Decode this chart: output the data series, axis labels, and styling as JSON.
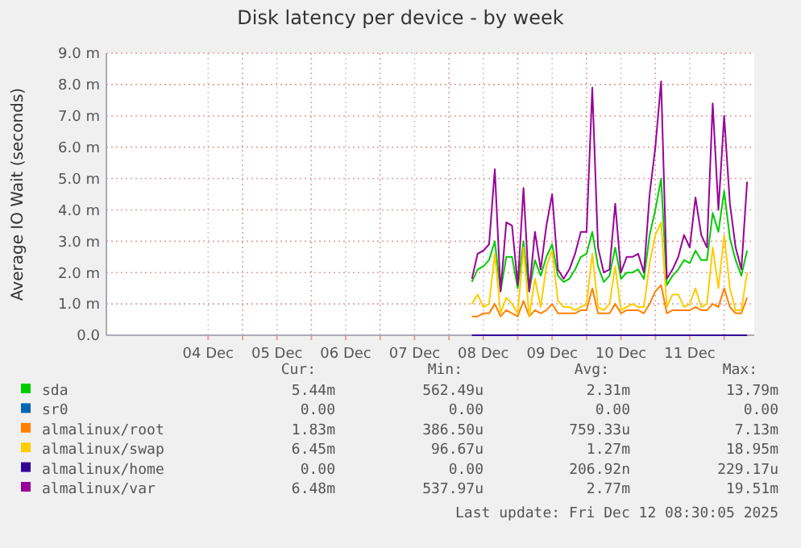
{
  "chart_data": {
    "type": "line",
    "title": "Disk latency per device - by week",
    "ylabel": "Average IO Wait (seconds)",
    "x": [
      "2025-12-08T08:00",
      "2025-12-08T10:00",
      "2025-12-08T12:00",
      "2025-12-08T14:00",
      "2025-12-08T16:00",
      "2025-12-08T18:00",
      "2025-12-08T20:00",
      "2025-12-08T22:00",
      "2025-12-09T00:00",
      "2025-12-09T02:00",
      "2025-12-09T04:00",
      "2025-12-09T06:00",
      "2025-12-09T08:00",
      "2025-12-09T10:00",
      "2025-12-09T12:00",
      "2025-12-09T14:00",
      "2025-12-09T16:00",
      "2025-12-09T18:00",
      "2025-12-09T20:00",
      "2025-12-09T22:00",
      "2025-12-10T00:00",
      "2025-12-10T02:00",
      "2025-12-10T04:00",
      "2025-12-10T06:00",
      "2025-12-10T08:00",
      "2025-12-10T10:00",
      "2025-12-10T12:00",
      "2025-12-10T14:00",
      "2025-12-10T16:00",
      "2025-12-10T18:00",
      "2025-12-10T20:00",
      "2025-12-10T22:00",
      "2025-12-11T00:00",
      "2025-12-11T02:00",
      "2025-12-11T04:00",
      "2025-12-11T06:00",
      "2025-12-11T08:00",
      "2025-12-11T10:00",
      "2025-12-11T12:00",
      "2025-12-11T14:00",
      "2025-12-11T16:00",
      "2025-12-11T18:00",
      "2025-12-11T20:00",
      "2025-12-11T22:00",
      "2025-12-12T00:00",
      "2025-12-12T02:00",
      "2025-12-12T04:00",
      "2025-12-12T06:00",
      "2025-12-12T08:00"
    ],
    "series": [
      {
        "name": "sda",
        "color": "#00cc00",
        "values": [
          1.7,
          2.1,
          2.2,
          2.4,
          3.0,
          1.4,
          2.5,
          2.5,
          1.5,
          3.0,
          1.4,
          2.4,
          1.9,
          2.5,
          2.9,
          1.9,
          1.7,
          1.8,
          2.1,
          2.5,
          2.6,
          3.3,
          2.2,
          1.7,
          1.9,
          2.8,
          1.8,
          2.0,
          2.0,
          2.1,
          1.8,
          3.2,
          4.0,
          5.0,
          1.6,
          1.9,
          2.1,
          2.4,
          2.3,
          2.7,
          2.4,
          2.4,
          3.9,
          3.3,
          4.6,
          3.1,
          2.4,
          1.9,
          2.7
        ]
      },
      {
        "name": "sr0",
        "color": "#0066b3",
        "values": [
          null,
          null,
          null,
          null,
          null,
          null,
          null,
          null,
          null,
          null,
          null,
          null,
          null,
          null,
          null,
          null,
          null,
          null,
          null,
          null,
          null,
          null,
          null,
          null,
          null,
          null,
          null,
          null,
          null,
          null,
          null,
          null,
          null,
          null,
          null,
          null,
          null,
          null,
          null,
          null,
          null,
          null,
          null,
          null,
          null,
          null,
          null,
          null,
          null
        ]
      },
      {
        "name": "almalinux/root",
        "color": "#ff8000",
        "values": [
          0.6,
          0.6,
          0.7,
          0.7,
          1.0,
          0.6,
          0.8,
          0.7,
          0.6,
          1.1,
          0.6,
          0.8,
          0.7,
          0.8,
          1.0,
          0.7,
          0.7,
          0.7,
          0.7,
          0.8,
          0.8,
          1.5,
          0.7,
          0.7,
          0.7,
          1.0,
          0.7,
          0.8,
          0.8,
          0.8,
          0.7,
          1.0,
          1.4,
          1.6,
          0.7,
          0.8,
          0.8,
          0.8,
          0.8,
          0.9,
          0.8,
          0.8,
          1.0,
          0.9,
          1.5,
          0.9,
          0.7,
          0.7,
          1.2
        ]
      },
      {
        "name": "almalinux/swap",
        "color": "#ffcc00",
        "values": [
          1.0,
          1.3,
          0.9,
          1.0,
          2.6,
          0.7,
          1.2,
          1.0,
          0.7,
          2.8,
          0.6,
          1.8,
          0.9,
          2.2,
          2.7,
          1.1,
          0.9,
          0.9,
          0.8,
          0.9,
          1.0,
          2.6,
          0.9,
          0.8,
          1.0,
          2.2,
          0.8,
          0.9,
          1.0,
          0.9,
          0.9,
          2.3,
          3.2,
          3.6,
          0.9,
          1.3,
          1.3,
          0.9,
          1.0,
          1.5,
          0.9,
          1.0,
          2.8,
          1.5,
          3.2,
          1.5,
          0.8,
          0.8,
          2.0
        ]
      },
      {
        "name": "almalinux/home",
        "color": "#330099",
        "values": [
          0,
          0,
          0,
          0,
          0,
          0,
          0,
          0,
          0,
          0,
          0,
          0,
          0,
          0,
          0,
          0,
          0,
          0,
          0,
          0,
          0,
          0,
          0,
          0,
          0,
          0,
          0,
          0,
          0,
          0,
          0,
          0,
          0,
          0,
          0,
          0,
          0,
          0,
          0,
          0,
          0,
          0,
          0,
          0,
          0,
          0,
          0,
          0,
          0
        ]
      },
      {
        "name": "almalinux/var",
        "color": "#990099",
        "values": [
          1.8,
          2.6,
          2.7,
          2.9,
          5.3,
          1.4,
          3.6,
          3.5,
          1.6,
          4.7,
          1.4,
          3.3,
          2.1,
          3.5,
          4.5,
          2.1,
          1.8,
          2.1,
          2.6,
          3.3,
          3.3,
          7.9,
          2.8,
          2.0,
          2.1,
          4.2,
          2.0,
          2.5,
          2.5,
          2.6,
          2.0,
          4.5,
          6.0,
          8.1,
          1.8,
          2.1,
          2.5,
          3.2,
          2.8,
          4.4,
          3.2,
          2.8,
          7.4,
          4.0,
          7.0,
          4.2,
          2.8,
          2.1,
          4.9
        ]
      }
    ],
    "xlim": [
      "2025-12-03T00:30",
      "2025-12-12T10:30"
    ],
    "xticks": [
      {
        "value": "2025-12-04T12:00",
        "label": "04 Dec"
      },
      {
        "value": "2025-12-05T00:00",
        "label": null
      },
      {
        "value": "2025-12-05T12:00",
        "label": "05 Dec"
      },
      {
        "value": "2025-12-06T00:00",
        "label": null
      },
      {
        "value": "2025-12-06T12:00",
        "label": "06 Dec"
      },
      {
        "value": "2025-12-07T00:00",
        "label": null
      },
      {
        "value": "2025-12-07T12:00",
        "label": "07 Dec"
      },
      {
        "value": "2025-12-08T00:00",
        "label": null
      },
      {
        "value": "2025-12-08T12:00",
        "label": "08 Dec"
      },
      {
        "value": "2025-12-09T00:00",
        "label": null
      },
      {
        "value": "2025-12-09T12:00",
        "label": "09 Dec"
      },
      {
        "value": "2025-12-10T00:00",
        "label": null
      },
      {
        "value": "2025-12-10T12:00",
        "label": "10 Dec"
      },
      {
        "value": "2025-12-11T00:00",
        "label": null
      },
      {
        "value": "2025-12-11T12:00",
        "label": "11 Dec"
      },
      {
        "value": "2025-12-12T00:00",
        "label": null
      }
    ],
    "ylim": [
      0,
      9
    ],
    "yticks": [
      {
        "value": 0,
        "label": "0.0"
      },
      {
        "value": 1,
        "label": "1.0 m"
      },
      {
        "value": 2,
        "label": "2.0 m"
      },
      {
        "value": 3,
        "label": "3.0 m"
      },
      {
        "value": 4,
        "label": "4.0 m"
      },
      {
        "value": 5,
        "label": "5.0 m"
      },
      {
        "value": 6,
        "label": "6.0 m"
      },
      {
        "value": 7,
        "label": "7.0 m"
      },
      {
        "value": 8,
        "label": "8.0 m"
      },
      {
        "value": 9,
        "label": "9.0 m"
      }
    ],
    "grid": true,
    "legend": "bottom",
    "marker": "none",
    "line_style": "solid",
    "annotations": [
      "Cur:",
      "Min:",
      "Avg:",
      "Max:",
      "5.44m",
      "562.49u",
      "2.31m",
      "13.79m",
      "0.00",
      "0.00",
      "0.00",
      "0.00",
      "1.83m",
      "386.50u",
      "759.33u",
      "7.13m",
      "6.45m",
      "96.67u",
      "1.27m",
      "18.95m",
      "0.00",
      "0.00",
      "206.92n",
      "229.17u",
      "6.48m",
      "537.97u",
      "2.77m",
      "19.51m",
      "Last update: Fri Dec 12 08:30:05 2025"
    ]
  }
}
